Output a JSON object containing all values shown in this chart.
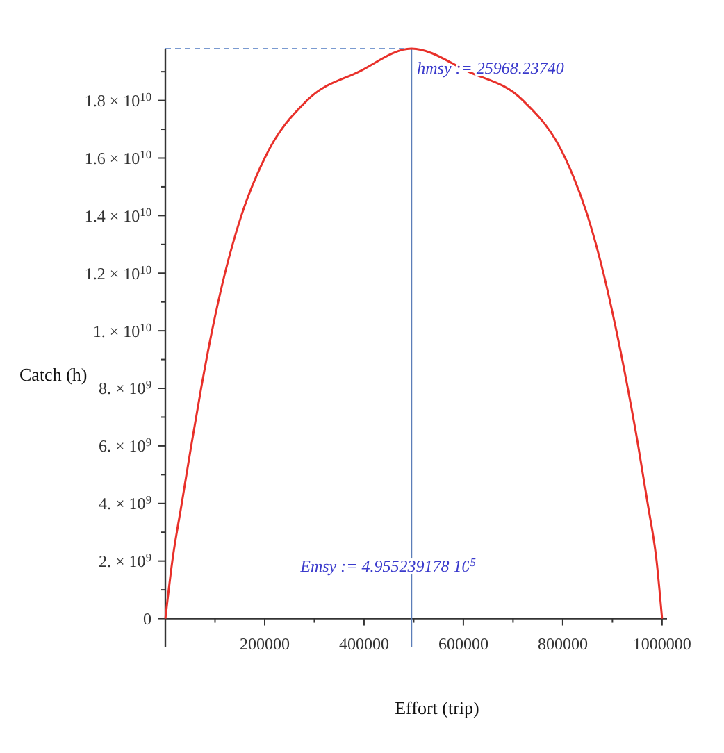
{
  "chart_data": {
    "type": "line",
    "xlabel": "Effort (trip)",
    "ylabel": "Catch (h)",
    "x": [
      0,
      14000,
      33000,
      52000,
      72000,
      94000,
      120000,
      153000,
      200000,
      285000,
      390000,
      495524,
      610000,
      720000,
      805000,
      850000,
      882000,
      908000,
      931000,
      952000,
      971000,
      989000,
      1000000
    ],
    "series": [
      {
        "color": "#e8302a",
        "values": [
          0,
          2000000000,
          4000000000,
          6000000000,
          8000000000,
          10000000000,
          12000000000,
          14000000000,
          16000000000,
          18000000000,
          19000000000,
          19800000000,
          19000000000,
          18000000000,
          16000000000,
          14000000000,
          12000000000,
          10000000000,
          8000000000,
          6000000000,
          4000000000,
          2000000000,
          0
        ]
      }
    ],
    "xlim": [
      0,
      1010000
    ],
    "ylim": [
      -1000000000,
      19800000000
    ],
    "xticks": [
      {
        "value": 100000,
        "label": null
      },
      200000,
      {
        "value": 300000,
        "label": null
      },
      400000,
      {
        "value": 500000,
        "label": null
      },
      600000,
      {
        "value": 700000,
        "label": null
      },
      800000,
      {
        "value": 900000,
        "label": null
      },
      1000000
    ],
    "yticks": [
      0,
      {
        "value": 1000000000,
        "label": null
      },
      {
        "value": 2000000000,
        "label": "2. × 10$^{9}$"
      },
      {
        "value": 3000000000,
        "label": null
      },
      {
        "value": 4000000000,
        "label": "4. × 10$^{9}$"
      },
      {
        "value": 5000000000,
        "label": null
      },
      {
        "value": 6000000000,
        "label": "6. × 10$^{9}$"
      },
      {
        "value": 7000000000,
        "label": null
      },
      {
        "value": 8000000000,
        "label": "8. × 10$^{9}$"
      },
      {
        "value": 9000000000,
        "label": null
      },
      {
        "value": 10000000000,
        "label": "1. × 10$^{10}$"
      },
      {
        "value": 11000000000,
        "label": null
      },
      {
        "value": 12000000000,
        "label": "1.2 × 10$^{10}$"
      },
      {
        "value": 13000000000,
        "label": null
      },
      {
        "value": 14000000000,
        "label": "1.4 × 10$^{10}$"
      },
      {
        "value": 15000000000,
        "label": null
      },
      {
        "value": 16000000000,
        "label": "1.6 × 10$^{10}$"
      },
      {
        "value": 17000000000,
        "label": null
      },
      {
        "value": 18000000000,
        "label": "1.8 × 10$^{10}$"
      },
      {
        "value": 19000000000,
        "label": null
      }
    ],
    "ref_lines": [
      {
        "axis": "x",
        "value": 495523.9178,
        "color": "#5b7db8"
      },
      {
        "axis": "y",
        "value": 19800000000,
        "color": "#7a9ad0",
        "line_style": "dashed"
      }
    ],
    "annotations": [
      {
        "text": "hmsy := 25968.23740",
        "x": 495523.9178,
        "y": 19800000000
      },
      {
        "text": "Emsy := 4.955239178 10$^{5}$",
        "x": 495523.9178,
        "y": 0
      }
    ],
    "grid": false,
    "marker": "none",
    "line_style": "solid"
  }
}
